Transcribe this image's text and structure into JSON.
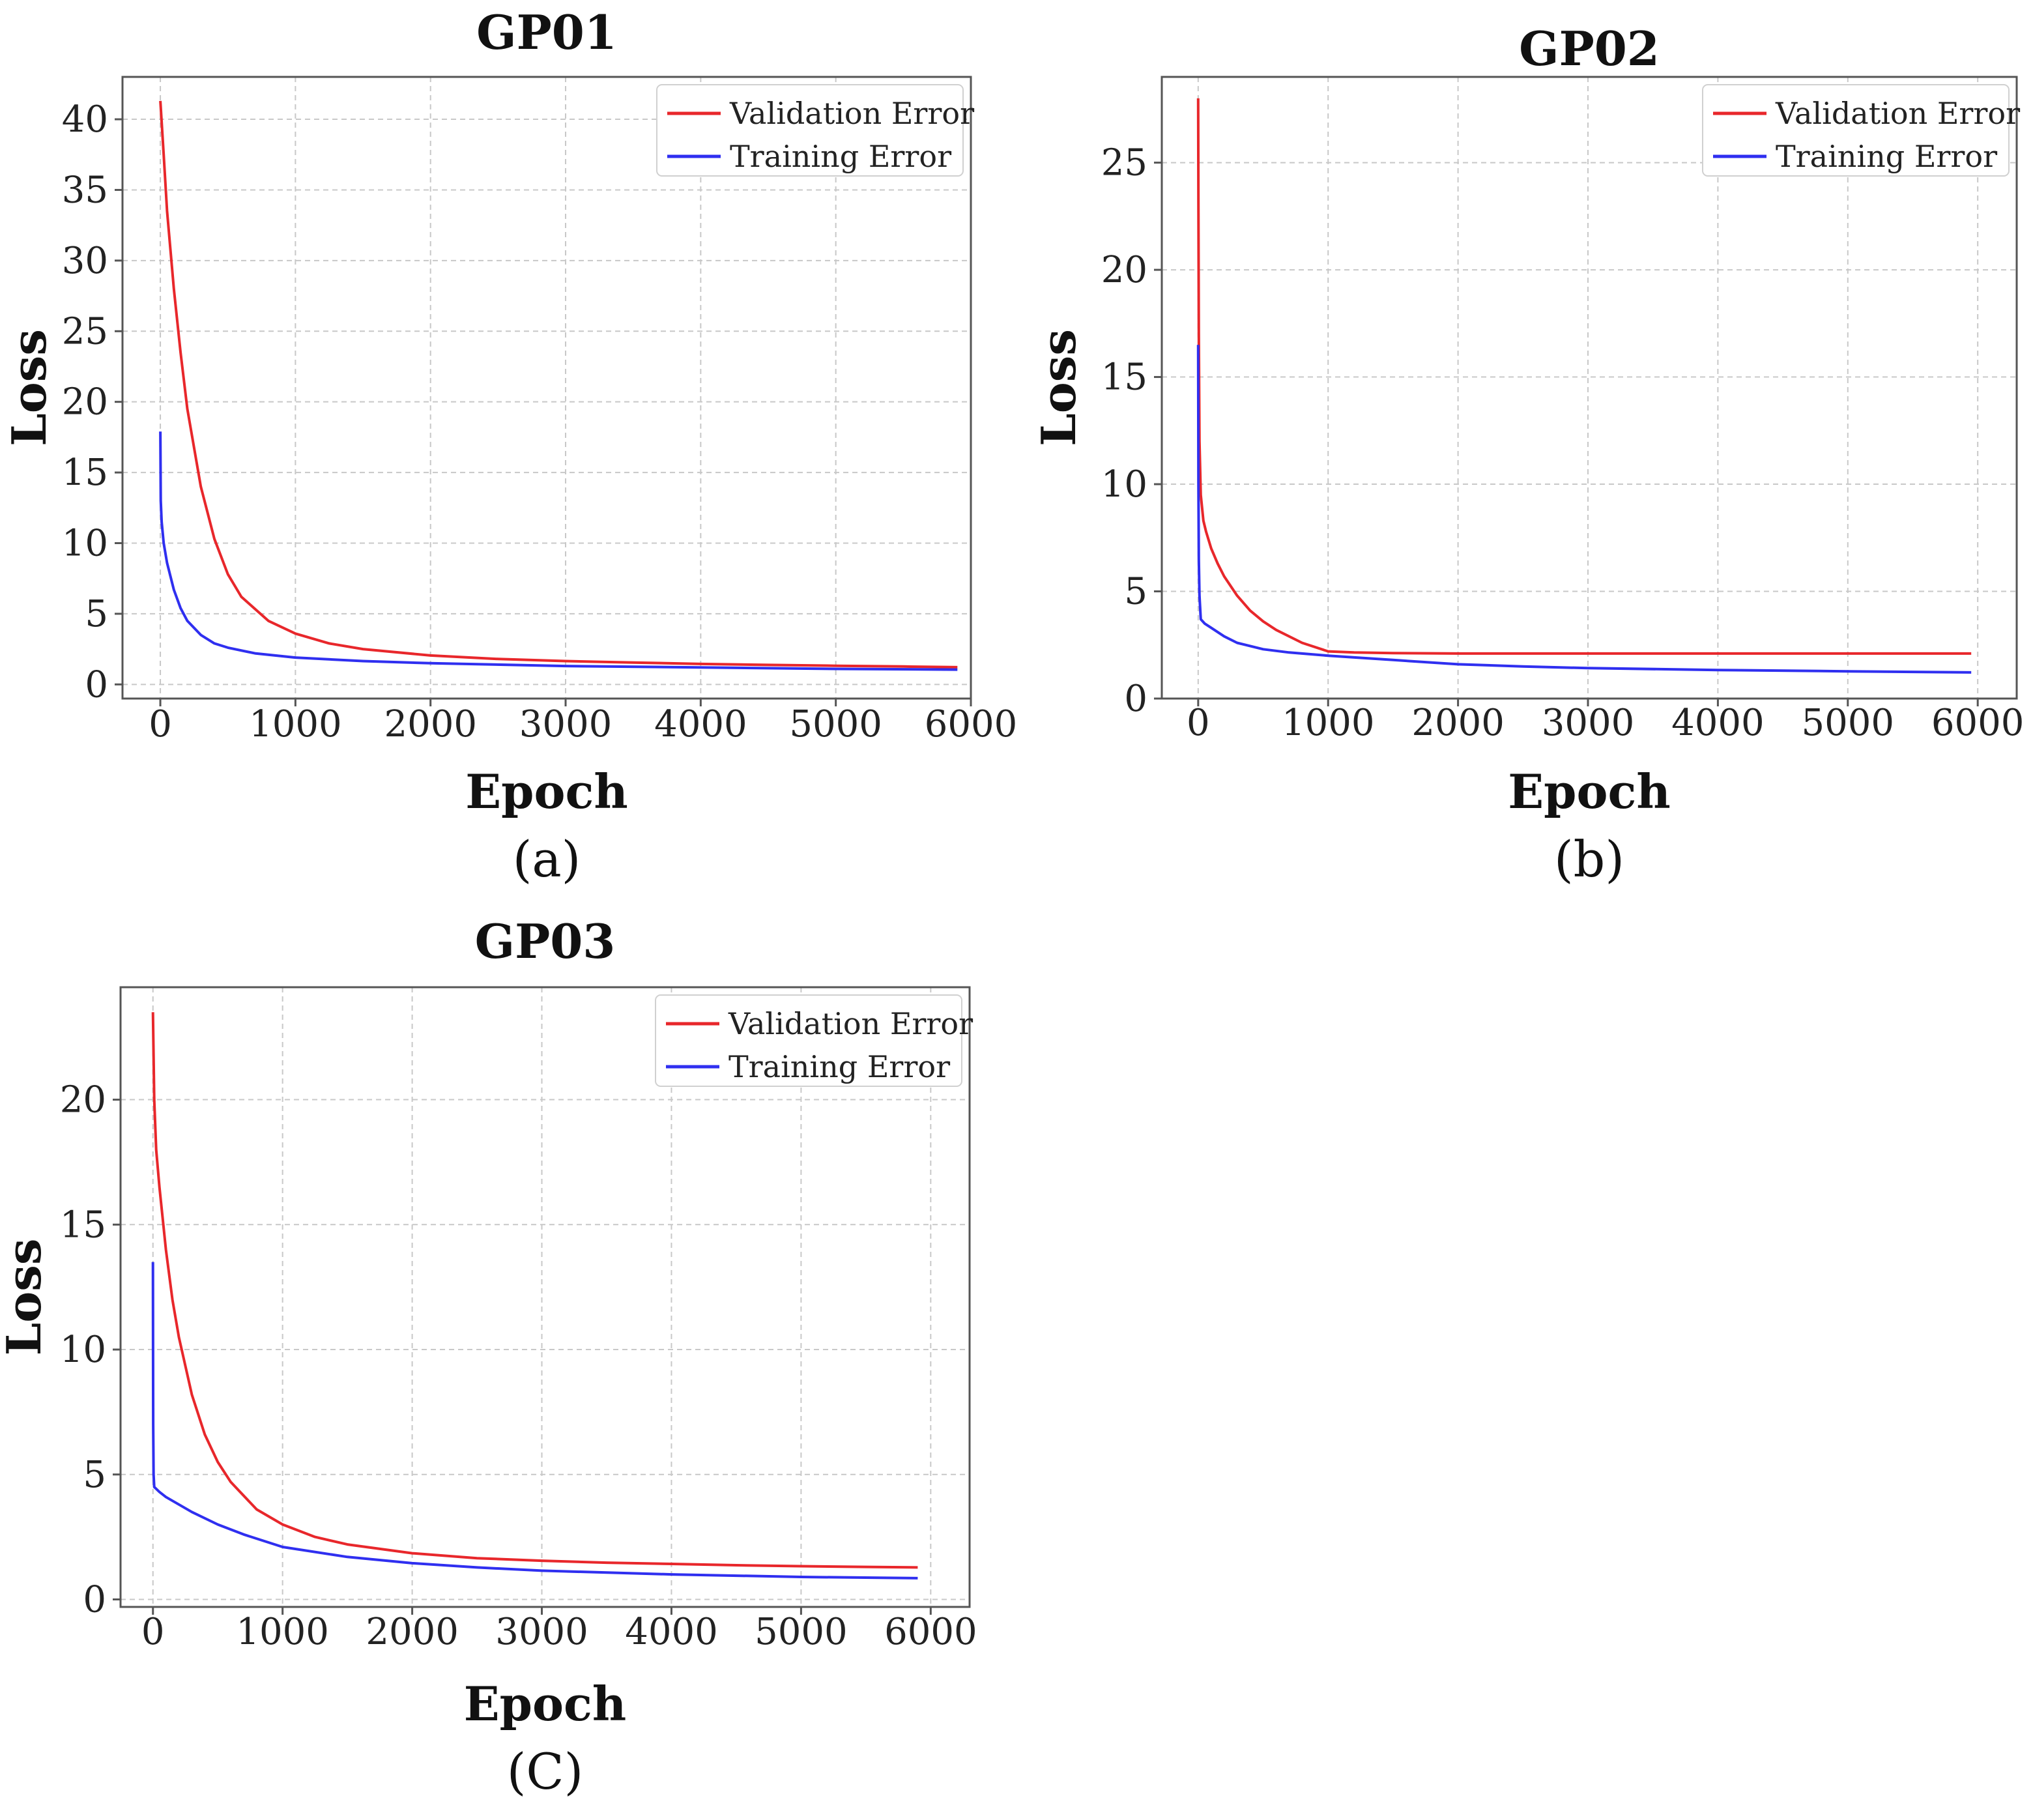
{
  "chart_data": [
    {
      "id": "gp01",
      "type": "line",
      "title": "GP01",
      "caption": "(a)",
      "xlabel": "Epoch",
      "ylabel": "Loss",
      "xlim": [
        -280,
        6000
      ],
      "ylim": [
        -1,
        43
      ],
      "xticks": [
        0,
        1000,
        2000,
        3000,
        4000,
        5000,
        6000
      ],
      "xtick_labels": [
        "0",
        "1000",
        "2000",
        "3000",
        "4000",
        "5000",
        "6000"
      ],
      "yticks": [
        0,
        5,
        10,
        15,
        20,
        25,
        30,
        35,
        40
      ],
      "ytick_labels": [
        "0",
        "5",
        "10",
        "15",
        "20",
        "25",
        "30",
        "35",
        "40"
      ],
      "grid": true,
      "legend_position": "top-right",
      "series": [
        {
          "name": "Validation Error",
          "color": "#e8272b",
          "x": [
            0,
            25,
            50,
            100,
            150,
            200,
            300,
            400,
            500,
            600,
            800,
            1000,
            1250,
            1500,
            2000,
            2500,
            3000,
            3500,
            4000,
            4500,
            5000,
            5500,
            5900
          ],
          "y": [
            41.3,
            37.5,
            33.5,
            28.0,
            23.5,
            19.5,
            14.0,
            10.3,
            7.8,
            6.2,
            4.5,
            3.6,
            2.9,
            2.5,
            2.05,
            1.8,
            1.65,
            1.55,
            1.45,
            1.38,
            1.32,
            1.27,
            1.22
          ]
        },
        {
          "name": "Training Error",
          "color": "#2f2ff0",
          "x": [
            0,
            3,
            10,
            25,
            50,
            100,
            150,
            200,
            300,
            400,
            500,
            700,
            1000,
            1500,
            2000,
            3000,
            4000,
            5000,
            5900
          ],
          "y": [
            17.9,
            13.0,
            11.5,
            10.0,
            8.6,
            6.7,
            5.4,
            4.5,
            3.5,
            2.9,
            2.6,
            2.2,
            1.9,
            1.65,
            1.5,
            1.3,
            1.2,
            1.1,
            1.05
          ]
        }
      ]
    },
    {
      "id": "gp02",
      "type": "line",
      "title": "GP02",
      "caption": "(b)",
      "xlabel": "Epoch",
      "ylabel": "Loss",
      "xlim": [
        -280,
        6300
      ],
      "ylim": [
        0,
        29
      ],
      "xticks": [
        0,
        1000,
        2000,
        3000,
        4000,
        5000,
        6000
      ],
      "xtick_labels": [
        "0",
        "1000",
        "2000",
        "3000",
        "4000",
        "5000",
        "6000"
      ],
      "yticks": [
        0,
        5,
        10,
        15,
        20,
        25
      ],
      "ytick_labels": [
        "0",
        "5",
        "10",
        "15",
        "20",
        "25"
      ],
      "grid": true,
      "legend_position": "top-right",
      "series": [
        {
          "name": "Validation Error",
          "color": "#e8272b",
          "x": [
            0,
            2,
            5,
            10,
            20,
            40,
            60,
            100,
            150,
            200,
            300,
            400,
            500,
            600,
            800,
            1000,
            1200,
            1500,
            2000,
            3000,
            4000,
            5000,
            5950
          ],
          "y": [
            28.0,
            23.0,
            17.0,
            12.0,
            9.5,
            8.3,
            7.8,
            7.0,
            6.3,
            5.7,
            4.8,
            4.1,
            3.6,
            3.2,
            2.6,
            2.2,
            2.15,
            2.12,
            2.1,
            2.1,
            2.1,
            2.1,
            2.1
          ]
        },
        {
          "name": "Training Error",
          "color": "#2f2ff0",
          "x": [
            0,
            2,
            5,
            10,
            20,
            50,
            100,
            200,
            300,
            500,
            700,
            1000,
            1500,
            2000,
            2500,
            3000,
            4000,
            5000,
            5950
          ],
          "y": [
            16.5,
            10.0,
            6.5,
            4.8,
            3.7,
            3.5,
            3.3,
            2.9,
            2.6,
            2.3,
            2.15,
            2.0,
            1.8,
            1.6,
            1.5,
            1.42,
            1.33,
            1.27,
            1.22
          ]
        }
      ]
    },
    {
      "id": "gp03",
      "type": "line",
      "title": "GP03",
      "caption": "(C)",
      "xlabel": "Epoch",
      "ylabel": "Loss",
      "xlim": [
        -250,
        6300
      ],
      "ylim": [
        -0.3,
        24.5
      ],
      "xticks": [
        0,
        1000,
        2000,
        3000,
        4000,
        5000,
        6000
      ],
      "xtick_labels": [
        "0",
        "1000",
        "2000",
        "3000",
        "4000",
        "5000",
        "6000"
      ],
      "yticks": [
        0,
        5,
        10,
        15,
        20
      ],
      "ytick_labels": [
        "0",
        "5",
        "10",
        "15",
        "20"
      ],
      "grid": true,
      "legend_position": "top-right",
      "series": [
        {
          "name": "Validation Error",
          "color": "#e8272b",
          "x": [
            0,
            10,
            25,
            50,
            100,
            150,
            200,
            300,
            400,
            500,
            600,
            800,
            1000,
            1250,
            1500,
            2000,
            2500,
            3000,
            3500,
            4000,
            4500,
            5000,
            5500,
            5900
          ],
          "y": [
            23.5,
            20.0,
            18.0,
            16.5,
            14.0,
            12.0,
            10.5,
            8.2,
            6.6,
            5.5,
            4.7,
            3.6,
            3.0,
            2.5,
            2.2,
            1.85,
            1.65,
            1.55,
            1.47,
            1.42,
            1.37,
            1.33,
            1.3,
            1.28
          ]
        },
        {
          "name": "Training Error",
          "color": "#2f2ff0",
          "x": [
            0,
            1,
            2,
            5,
            10,
            50,
            100,
            200,
            300,
            500,
            700,
            1000,
            1500,
            2000,
            2500,
            3000,
            4000,
            5000,
            5900
          ],
          "y": [
            13.5,
            10.0,
            7.0,
            5.0,
            4.5,
            4.3,
            4.1,
            3.8,
            3.5,
            3.0,
            2.6,
            2.1,
            1.7,
            1.45,
            1.28,
            1.15,
            1.0,
            0.9,
            0.85
          ]
        }
      ]
    }
  ]
}
